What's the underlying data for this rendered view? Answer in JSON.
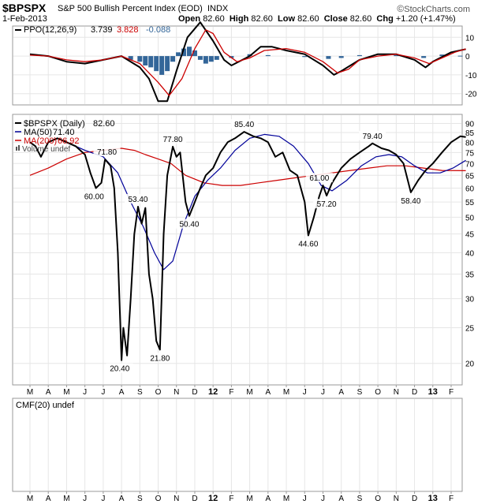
{
  "header": {
    "symbol": "$BPSPX",
    "name": "S&P 500 Bullish Percent Index (EOD)",
    "exchange": "INDX",
    "watermark": "StockCharts.com",
    "watermark_symbol": "©",
    "date": "1-Feb-2013",
    "ohlc": {
      "open_label": "Open",
      "open": "82.60",
      "high_label": "High",
      "high": "82.60",
      "low_label": "Low",
      "low": "82.60",
      "close_label": "Close",
      "close": "82.60",
      "chg_label": "Chg",
      "chg": "+1.20 (+1.47%)"
    }
  },
  "colors": {
    "price": "#000000",
    "ma200": "#cc0000",
    "ma50": "#000099",
    "histogram": "#336699",
    "grid": "#e6e6e6",
    "border": "#999999"
  },
  "chart_data": [
    {
      "type": "line",
      "name": "PPO panel",
      "legend": {
        "ppo_label": "PPO(12,26,9)",
        "ppo_value": "3.739",
        "signal_value": "3.828",
        "hist_value": "-0.088"
      },
      "y_ticks": [
        10,
        0,
        -10,
        -20
      ],
      "ylim": [
        -26,
        16
      ],
      "x_months": 24,
      "series": [
        {
          "key": "ppo",
          "color": "#000000",
          "points": [
            [
              0,
              1
            ],
            [
              1,
              0
            ],
            [
              2,
              -3
            ],
            [
              3,
              -4
            ],
            [
              4,
              -2
            ],
            [
              5,
              0
            ],
            [
              6,
              -6
            ],
            [
              6.5,
              -12
            ],
            [
              7,
              -24
            ],
            [
              7.5,
              -24
            ],
            [
              8,
              -8
            ],
            [
              8.6,
              10
            ],
            [
              9.3,
              18
            ],
            [
              10,
              8
            ],
            [
              10.6,
              -2
            ],
            [
              11,
              -5
            ],
            [
              12,
              0
            ],
            [
              12.6,
              5
            ],
            [
              13.2,
              5
            ],
            [
              14,
              3
            ],
            [
              15,
              1
            ],
            [
              16,
              -5
            ],
            [
              16.6,
              -10
            ],
            [
              17,
              -8
            ],
            [
              18,
              -2
            ],
            [
              19,
              1
            ],
            [
              20,
              1
            ],
            [
              21,
              -2
            ],
            [
              21.6,
              -6
            ],
            [
              22,
              -3
            ],
            [
              23,
              2
            ],
            [
              23.8,
              3.7
            ]
          ]
        },
        {
          "key": "signal",
          "color": "#cc0000",
          "points": [
            [
              0,
              0.5
            ],
            [
              1,
              0
            ],
            [
              2,
              -2
            ],
            [
              3,
              -3
            ],
            [
              4,
              -2
            ],
            [
              5,
              0
            ],
            [
              6,
              -4
            ],
            [
              7,
              -14
            ],
            [
              7.6,
              -21
            ],
            [
              8.3,
              -12
            ],
            [
              9,
              4
            ],
            [
              9.6,
              14
            ],
            [
              10,
              12
            ],
            [
              10.6,
              2
            ],
            [
              11.3,
              -3
            ],
            [
              12,
              -1
            ],
            [
              12.8,
              3
            ],
            [
              14,
              4
            ],
            [
              15,
              2
            ],
            [
              16,
              -3
            ],
            [
              16.8,
              -9
            ],
            [
              17.4,
              -7
            ],
            [
              18,
              -2
            ],
            [
              19,
              0
            ],
            [
              20,
              1
            ],
            [
              21,
              -1
            ],
            [
              21.8,
              -4
            ],
            [
              22.5,
              -1
            ],
            [
              23.2,
              2
            ],
            [
              23.8,
              3.8
            ]
          ]
        }
      ],
      "histogram": [
        [
          5.5,
          -2
        ],
        [
          6,
          -3
        ],
        [
          6.3,
          -5
        ],
        [
          6.6,
          -6
        ],
        [
          6.9,
          -8
        ],
        [
          7.2,
          -10
        ],
        [
          7.5,
          -8
        ],
        [
          7.8,
          -3
        ],
        [
          8.1,
          2
        ],
        [
          8.4,
          4
        ],
        [
          8.7,
          5
        ],
        [
          9,
          3
        ],
        [
          9.3,
          -2
        ],
        [
          9.6,
          -4
        ],
        [
          9.9,
          -3
        ],
        [
          10.2,
          -2
        ],
        [
          11,
          -1
        ],
        [
          12,
          1
        ],
        [
          13,
          0.5
        ],
        [
          15,
          -0.5
        ],
        [
          16.3,
          -1.5
        ],
        [
          17,
          -1
        ],
        [
          18,
          0.5
        ],
        [
          20,
          0.5
        ],
        [
          21.5,
          -1
        ],
        [
          22.5,
          0.8
        ],
        [
          23.5,
          0.2
        ]
      ]
    },
    {
      "type": "line",
      "name": "Price panel",
      "legend": {
        "price_label": "$BPSPX (Daily)",
        "price_value": "82.60",
        "ma50_label": "MA(50)",
        "ma50_value": "71.40",
        "ma200_label": "MA(200)",
        "ma200_value": "66.92",
        "volume_label": "Volume undef"
      },
      "y_ticks": [
        90,
        85,
        80,
        75,
        70,
        65,
        60,
        55,
        50,
        45,
        40,
        35,
        30,
        25,
        20
      ],
      "ylim": [
        18,
        92
      ],
      "log_scale": true,
      "annotations": [
        {
          "text": "71.80",
          "x": 4.2,
          "y": 71.8
        },
        {
          "text": "60.00",
          "x": 3.5,
          "y": 60
        },
        {
          "text": "53.40",
          "x": 5.9,
          "y": 53.4
        },
        {
          "text": "77.80",
          "x": 7.8,
          "y": 77.8
        },
        {
          "text": "20.40",
          "x": 4.9,
          "y": 20.4
        },
        {
          "text": "21.80",
          "x": 7.1,
          "y": 21.8
        },
        {
          "text": "50.40",
          "x": 8.7,
          "y": 50.4
        },
        {
          "text": "85.40",
          "x": 11.7,
          "y": 85.4
        },
        {
          "text": "61.00",
          "x": 15.8,
          "y": 61
        },
        {
          "text": "57.20",
          "x": 16.2,
          "y": 57.2
        },
        {
          "text": "44.60",
          "x": 15.2,
          "y": 44.6
        },
        {
          "text": "79.40",
          "x": 18.7,
          "y": 79.4
        },
        {
          "text": "58.40",
          "x": 20.8,
          "y": 58.4
        }
      ],
      "series": [
        {
          "key": "price",
          "color": "#000000",
          "points": [
            [
              0,
              80
            ],
            [
              0.3,
              78
            ],
            [
              0.6,
              73
            ],
            [
              1,
              80
            ],
            [
              1.5,
              82
            ],
            [
              2,
              80
            ],
            [
              2.5,
              78
            ],
            [
              3,
              74
            ],
            [
              3.3,
              66
            ],
            [
              3.6,
              60
            ],
            [
              3.9,
              62
            ],
            [
              4.1,
              71.8
            ],
            [
              4.4,
              69
            ],
            [
              4.6,
              60
            ],
            [
              4.8,
              40
            ],
            [
              5.0,
              20.4
            ],
            [
              5.1,
              25
            ],
            [
              5.3,
              21
            ],
            [
              5.5,
              30
            ],
            [
              5.7,
              45
            ],
            [
              5.9,
              53.4
            ],
            [
              6.1,
              48
            ],
            [
              6.3,
              53
            ],
            [
              6.5,
              35
            ],
            [
              6.7,
              30
            ],
            [
              6.9,
              23
            ],
            [
              7.1,
              21.8
            ],
            [
              7.3,
              45
            ],
            [
              7.5,
              65
            ],
            [
              7.8,
              77.8
            ],
            [
              8.0,
              73
            ],
            [
              8.2,
              75
            ],
            [
              8.5,
              55
            ],
            [
              8.7,
              50.4
            ],
            [
              9.0,
              55
            ],
            [
              9.3,
              60
            ],
            [
              9.6,
              65
            ],
            [
              10.0,
              68
            ],
            [
              10.4,
              75
            ],
            [
              10.8,
              80
            ],
            [
              11.2,
              82
            ],
            [
              11.7,
              85.4
            ],
            [
              12.2,
              83
            ],
            [
              12.6,
              82
            ],
            [
              13.0,
              80
            ],
            [
              13.4,
              73
            ],
            [
              13.8,
              75
            ],
            [
              14.2,
              67
            ],
            [
              14.6,
              65
            ],
            [
              15.0,
              55
            ],
            [
              15.2,
              44.6
            ],
            [
              15.5,
              50
            ],
            [
              15.8,
              57
            ],
            [
              16.0,
              61
            ],
            [
              16.2,
              57.2
            ],
            [
              16.5,
              62
            ],
            [
              17.0,
              68
            ],
            [
              17.5,
              72
            ],
            [
              18.0,
              75
            ],
            [
              18.5,
              78
            ],
            [
              18.7,
              79.4
            ],
            [
              19.2,
              77
            ],
            [
              19.6,
              76
            ],
            [
              20.0,
              74
            ],
            [
              20.4,
              70
            ],
            [
              20.8,
              58.4
            ],
            [
              21.2,
              63
            ],
            [
              21.6,
              67
            ],
            [
              22.0,
              70
            ],
            [
              22.5,
              75
            ],
            [
              23.0,
              80
            ],
            [
              23.5,
              83
            ],
            [
              23.8,
              82.6
            ]
          ]
        },
        {
          "key": "ma200",
          "color": "#cc0000",
          "points": [
            [
              0,
              65
            ],
            [
              1,
              68
            ],
            [
              2,
              72
            ],
            [
              3,
              75
            ],
            [
              4,
              76
            ],
            [
              5,
              77
            ],
            [
              5.7,
              76
            ],
            [
              6.3,
              74
            ],
            [
              7.0,
              72
            ],
            [
              7.7,
              70
            ],
            [
              8.5,
              65
            ],
            [
              9.5,
              62
            ],
            [
              10.5,
              61
            ],
            [
              11.5,
              61
            ],
            [
              12.5,
              62
            ],
            [
              13.5,
              63
            ],
            [
              14.5,
              64
            ],
            [
              15.5,
              65
            ],
            [
              16.5,
              66
            ],
            [
              17.5,
              67
            ],
            [
              18.5,
              68
            ],
            [
              19.5,
              69
            ],
            [
              20.5,
              69
            ],
            [
              21.5,
              68
            ],
            [
              22.5,
              67
            ],
            [
              23.8,
              66.9
            ]
          ]
        },
        {
          "key": "ma50",
          "color": "#000099",
          "points": [
            [
              2.0,
              80
            ],
            [
              3.0,
              76
            ],
            [
              4.0,
              73
            ],
            [
              4.8,
              66
            ],
            [
              5.5,
              55
            ],
            [
              6.2,
              47
            ],
            [
              6.8,
              40
            ],
            [
              7.3,
              36
            ],
            [
              7.8,
              38
            ],
            [
              8.4,
              48
            ],
            [
              9.0,
              57
            ],
            [
              9.7,
              63
            ],
            [
              10.4,
              68
            ],
            [
              11.2,
              76
            ],
            [
              12.0,
              82
            ],
            [
              12.8,
              84
            ],
            [
              13.6,
              83
            ],
            [
              14.4,
              78
            ],
            [
              15.2,
              70
            ],
            [
              15.9,
              61
            ],
            [
              16.5,
              59
            ],
            [
              17.3,
              63
            ],
            [
              18.1,
              69
            ],
            [
              18.9,
              73
            ],
            [
              19.6,
              74
            ],
            [
              20.3,
              73
            ],
            [
              21.0,
              69
            ],
            [
              21.7,
              66
            ],
            [
              22.4,
              66
            ],
            [
              23.1,
              68
            ],
            [
              23.8,
              71.4
            ]
          ]
        }
      ]
    },
    {
      "type": "line",
      "name": "CMF panel",
      "legend": {
        "cmf_label": "CMF(20) undef"
      },
      "series": []
    }
  ],
  "x_axis": {
    "labels": [
      "M",
      "A",
      "M",
      "J",
      "J",
      "A",
      "S",
      "O",
      "N",
      "D",
      "12",
      "F",
      "M",
      "A",
      "M",
      "J",
      "J",
      "A",
      "S",
      "O",
      "N",
      "D",
      "13",
      "F"
    ],
    "bold": [
      "12",
      "13"
    ]
  }
}
